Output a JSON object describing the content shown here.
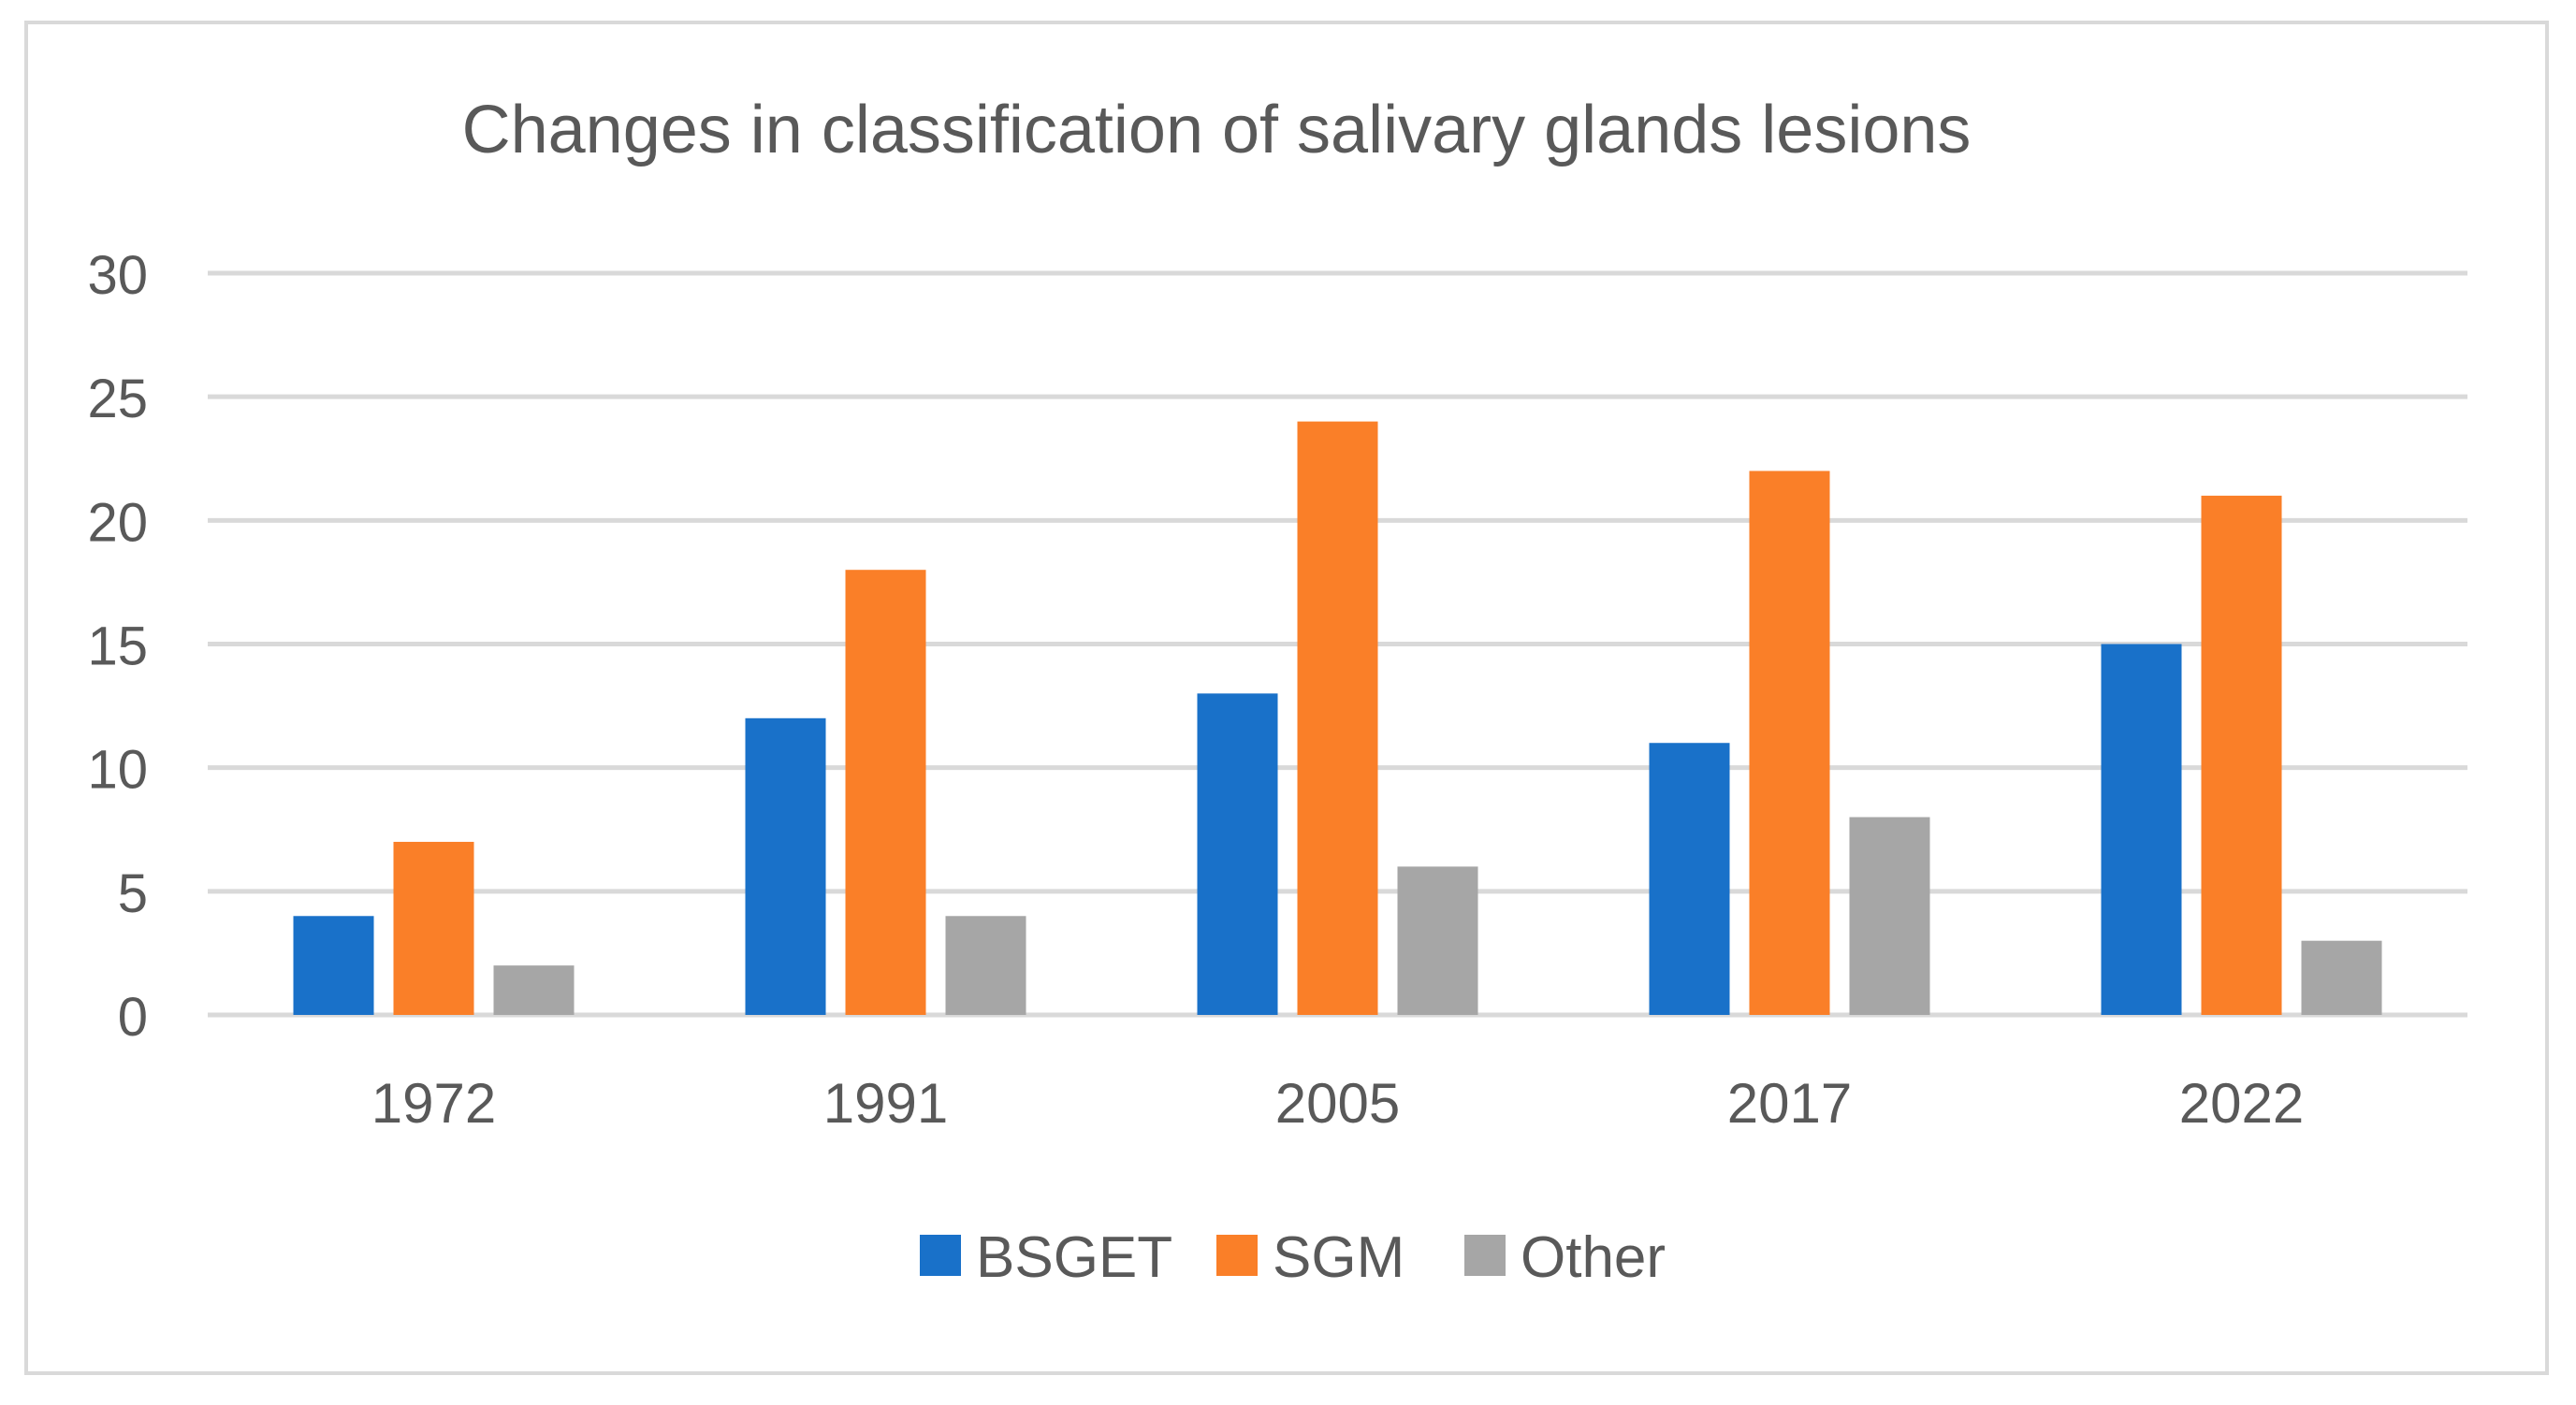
{
  "chart_data": {
    "type": "bar",
    "title": "Changes in classification of salivary glands lesions",
    "categories": [
      "1972",
      "1991",
      "2005",
      "2017",
      "2022"
    ],
    "series": [
      {
        "name": "BSGET",
        "color": "#1971c9",
        "values": [
          4,
          12,
          13,
          11,
          15
        ]
      },
      {
        "name": "SGM",
        "color": "#fa7f28",
        "values": [
          7,
          18,
          24,
          22,
          21
        ]
      },
      {
        "name": "Other",
        "color": "#a6a6a6",
        "values": [
          2,
          4,
          6,
          8,
          3
        ]
      }
    ],
    "ylim": [
      0,
      30
    ],
    "yticks": [
      0,
      5,
      10,
      15,
      20,
      25,
      30
    ],
    "xlabel": "",
    "ylabel": "",
    "grid": true,
    "legend": "bottom-center"
  },
  "colors": {
    "gridline": "#d9d9d9",
    "text": "#595959",
    "frame": "#d9d9d9"
  }
}
